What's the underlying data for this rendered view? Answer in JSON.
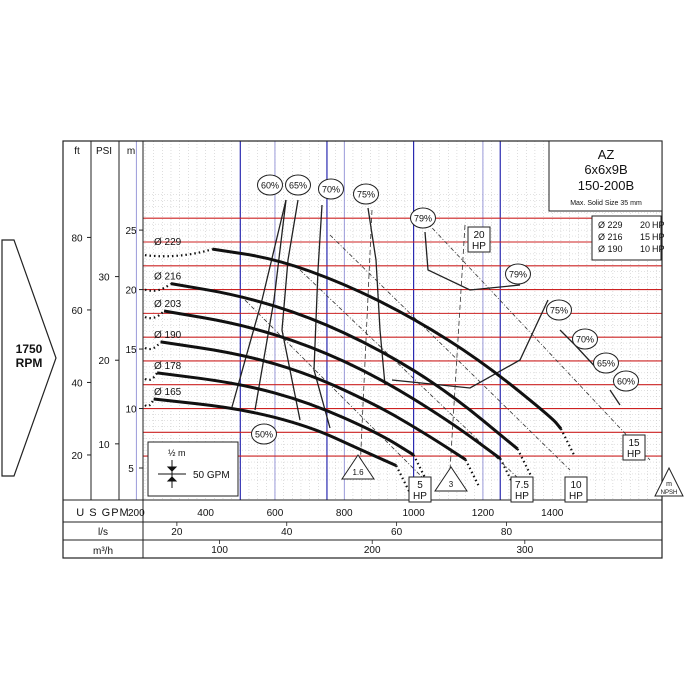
{
  "chart_data": {
    "type": "line",
    "model": "AZ",
    "size": "6x6x9B",
    "frame": "150-200B",
    "max_solid_text": "Max. Solid Size 35 mm",
    "speed": {
      "value": "1750",
      "unit": "RPM"
    },
    "axes": {
      "x_gpm": {
        "label": "U S GPM",
        "ticks": [
          200,
          400,
          600,
          800,
          1000,
          1200,
          1400
        ]
      },
      "x_ls": {
        "label": "l/s",
        "ticks": [
          20,
          40,
          60,
          80
        ]
      },
      "x_m3h": {
        "label": "m³/h",
        "ticks": [
          100,
          200,
          300
        ]
      },
      "y_m": {
        "label": "m",
        "ticks": [
          5,
          10,
          15,
          20,
          25
        ],
        "range": [
          3.6,
          28.2
        ]
      },
      "y_ft": {
        "label": "ft",
        "ticks": [
          20,
          40,
          60,
          80
        ]
      },
      "y_psi": {
        "label": "PSI",
        "ticks": [
          10,
          20,
          30
        ]
      }
    },
    "impeller_curves": [
      {
        "name": "Ø 229",
        "x": [
          420,
          600,
          800,
          1000,
          1200,
          1400,
          1425
        ],
        "y": [
          23.4,
          22.6,
          20.5,
          17.6,
          13.9,
          9.2,
          8.3
        ]
      },
      {
        "name": "Ø 216",
        "x": [
          300,
          500,
          700,
          900,
          1100,
          1300
        ],
        "y": [
          20.5,
          19.5,
          17.7,
          15.0,
          11.4,
          6.6
        ]
      },
      {
        "name": "Ø 203",
        "x": [
          280,
          500,
          700,
          900,
          1100,
          1250
        ],
        "y": [
          18.2,
          17.1,
          15.3,
          12.6,
          9.0,
          5.8
        ]
      },
      {
        "name": "Ø 190",
        "x": [
          270,
          500,
          700,
          900,
          1050,
          1150
        ],
        "y": [
          15.6,
          14.6,
          12.9,
          10.2,
          7.6,
          5.7
        ]
      },
      {
        "name": "Ø 178",
        "x": [
          260,
          500,
          700,
          900,
          1000
        ],
        "y": [
          13.0,
          12.1,
          10.5,
          7.9,
          6.1
        ]
      },
      {
        "name": "Ø 165",
        "x": [
          250,
          500,
          700,
          850,
          950
        ],
        "y": [
          10.8,
          10.0,
          8.5,
          6.5,
          5.2
        ]
      }
    ],
    "efficiency_labels": [
      "50%",
      "60%",
      "65%",
      "70%",
      "75%",
      "79%",
      "79%",
      "75%",
      "70%",
      "65%",
      "60%"
    ],
    "power_labels": [
      "5 HP",
      "7.5 HP",
      "10 HP",
      "15 HP",
      "20 HP"
    ],
    "npsh_labels": [
      "1.6",
      "3"
    ],
    "npsh_marker": {
      "text": "m",
      "text2": "NPSH"
    },
    "motor_table": [
      {
        "d": "Ø 229",
        "hp": "20",
        "unit": "HP"
      },
      {
        "d": "Ø 216",
        "hp": "15",
        "unit": "HP"
      },
      {
        "d": "Ø 190",
        "hp": "10",
        "unit": "HP"
      }
    ],
    "legend_scale": {
      "m": "½ m",
      "gpm": "50 GPM"
    },
    "grid": true
  }
}
